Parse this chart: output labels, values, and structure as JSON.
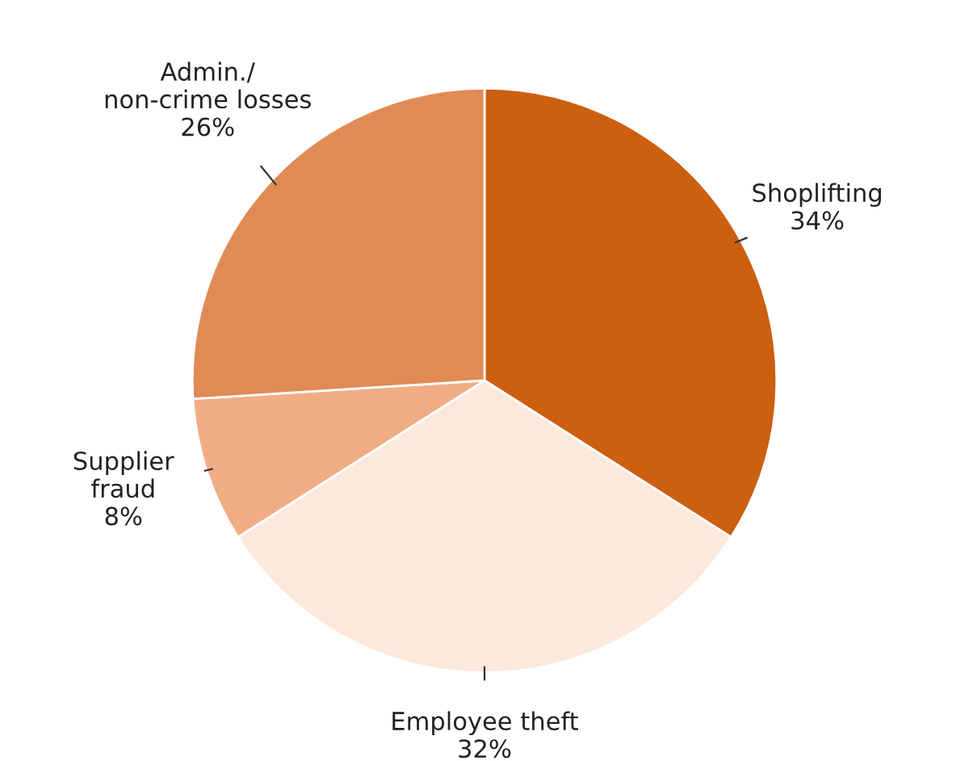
{
  "chart_data": {
    "type": "pie",
    "categories": [
      "Shoplifting",
      "Employee theft",
      "Supplier\nfraud",
      "Admin./\nnon-crime losses"
    ],
    "values": [
      34,
      32,
      8,
      26
    ],
    "value_labels": [
      "34%",
      "32%",
      "8%",
      "26%"
    ],
    "colors": [
      "#cc5f10",
      "#fde8dc",
      "#f0ad84",
      "#e08a55"
    ]
  }
}
